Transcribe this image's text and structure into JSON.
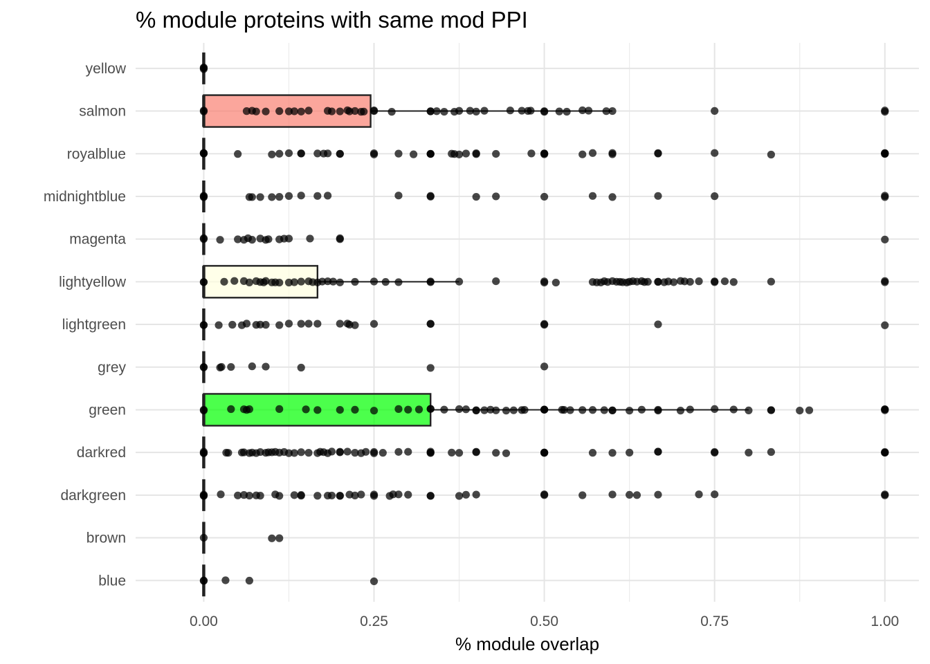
{
  "chart_data": {
    "type": "boxplot",
    "orientation": "horizontal",
    "title": "% module proteins with same mod PPI",
    "xlabel": "% module overlap",
    "ylabel": "",
    "xlim": [
      -0.1,
      1.05
    ],
    "xticks": [
      0,
      0.25,
      0.5,
      0.75,
      1.0
    ],
    "xtick_labels": [
      "0.00",
      "0.25",
      "0.50",
      "0.75",
      "1.00"
    ],
    "grid": true,
    "legend": "none",
    "point_color": "#000000",
    "categories": [
      "yellow",
      "salmon",
      "royalblue",
      "midnightblue",
      "magenta",
      "lightyellow",
      "lightgreen",
      "grey",
      "green",
      "darkred",
      "darkgreen",
      "brown",
      "blue"
    ],
    "boxes": [
      {
        "category": "yellow",
        "fill": "#FFFF00",
        "q1": 0,
        "median": 0,
        "q3": 0,
        "whisker_low": 0,
        "whisker_high": 0
      },
      {
        "category": "salmon",
        "fill": "#FA8072",
        "q1": 0,
        "median": 0,
        "q3": 0.245,
        "whisker_low": 0,
        "whisker_high": 0.6
      },
      {
        "category": "royalblue",
        "fill": "#4169E1",
        "q1": 0,
        "median": 0,
        "q3": 0,
        "whisker_low": 0,
        "whisker_high": 0
      },
      {
        "category": "midnightblue",
        "fill": "#191970",
        "q1": 0,
        "median": 0,
        "q3": 0,
        "whisker_low": 0,
        "whisker_high": 0
      },
      {
        "category": "magenta",
        "fill": "#FF00FF",
        "q1": 0,
        "median": 0,
        "q3": 0,
        "whisker_low": 0,
        "whisker_high": 0
      },
      {
        "category": "lightyellow",
        "fill": "#FFFFE0",
        "q1": 0,
        "median": 0,
        "q3": 0.167,
        "whisker_low": 0,
        "whisker_high": 0.375
      },
      {
        "category": "lightgreen",
        "fill": "#90EE90",
        "q1": 0,
        "median": 0,
        "q3": 0,
        "whisker_low": 0,
        "whisker_high": 0
      },
      {
        "category": "grey",
        "fill": "#BEBEBE",
        "q1": 0,
        "median": 0,
        "q3": 0,
        "whisker_low": 0,
        "whisker_high": 0
      },
      {
        "category": "green",
        "fill": "#00FF00",
        "q1": 0,
        "median": 0,
        "q3": 0.333,
        "whisker_low": 0,
        "whisker_high": 0.8
      },
      {
        "category": "darkred",
        "fill": "#8B0000",
        "q1": 0,
        "median": 0,
        "q3": 0,
        "whisker_low": 0,
        "whisker_high": 0
      },
      {
        "category": "darkgreen",
        "fill": "#006400",
        "q1": 0,
        "median": 0,
        "q3": 0,
        "whisker_low": 0,
        "whisker_high": 0
      },
      {
        "category": "brown",
        "fill": "#A52A2A",
        "q1": 0,
        "median": 0,
        "q3": 0,
        "whisker_low": 0,
        "whisker_high": 0
      },
      {
        "category": "blue",
        "fill": "#0000FF",
        "q1": 0,
        "median": 0,
        "q3": 0,
        "whisker_low": 0,
        "whisker_high": 0
      }
    ],
    "points": {
      "yellow": [
        0,
        0,
        0
      ],
      "salmon": [
        0,
        0,
        0.063,
        0.071,
        0.077,
        0.091,
        0.111,
        0.125,
        0.133,
        0.143,
        0.154,
        0.182,
        0.188,
        0.2,
        0.211,
        0.214,
        0.222,
        0.231,
        0.235,
        0.25,
        0.25,
        0.276,
        0.333,
        0.333,
        0.342,
        0.353,
        0.368,
        0.375,
        0.391,
        0.4,
        0.412,
        0.45,
        0.467,
        0.476,
        0.48,
        0.5,
        0.5,
        0.522,
        0.533,
        0.556,
        0.565,
        0.591,
        0.6,
        0.75,
        1,
        1
      ],
      "royalblue": [
        0,
        0,
        0,
        0.05,
        0.1,
        0.111,
        0.125,
        0.143,
        0.143,
        0.167,
        0.176,
        0.182,
        0.2,
        0.2,
        0.25,
        0.25,
        0.286,
        0.308,
        0.333,
        0.333,
        0.333,
        0.364,
        0.368,
        0.375,
        0.385,
        0.4,
        0.4,
        0.429,
        0.481,
        0.5,
        0.5,
        0.5,
        0.556,
        0.571,
        0.6,
        0.6,
        0.667,
        0.667,
        0.75,
        0.833,
        1,
        1,
        1,
        1
      ],
      "midnightblue": [
        0,
        0,
        0,
        0.067,
        0.071,
        0.083,
        0.1,
        0.111,
        0.125,
        0.143,
        0.167,
        0.182,
        0.286,
        0.333,
        0.333,
        0.4,
        0.429,
        0.5,
        0.571,
        0.6,
        0.667,
        0.75,
        1,
        1
      ],
      "magenta": [
        0,
        0,
        0.024,
        0.05,
        0.059,
        0.065,
        0.071,
        0.083,
        0.091,
        0.095,
        0.111,
        0.118,
        0.125,
        0.156,
        0.2,
        0.2,
        1
      ],
      "lightyellow": [
        0,
        0,
        0.03,
        0.045,
        0.059,
        0.067,
        0.077,
        0.083,
        0.088,
        0.091,
        0.1,
        0.105,
        0.111,
        0.125,
        0.133,
        0.143,
        0.154,
        0.16,
        0.167,
        0.174,
        0.182,
        0.19,
        0.2,
        0.222,
        0.25,
        0.267,
        0.286,
        0.333,
        0.333,
        0.375,
        0.429,
        0.5,
        0.5,
        0.517,
        0.571,
        0.577,
        0.583,
        0.588,
        0.593,
        0.6,
        0.606,
        0.611,
        0.615,
        0.621,
        0.625,
        0.63,
        0.636,
        0.643,
        0.647,
        0.652,
        0.667,
        0.667,
        0.676,
        0.682,
        0.69,
        0.7,
        0.706,
        0.714,
        0.727,
        0.75,
        0.75,
        0.765,
        0.778,
        0.833,
        1,
        1
      ],
      "lightgreen": [
        0,
        0,
        0.022,
        0.042,
        0.056,
        0.063,
        0.077,
        0.083,
        0.091,
        0.111,
        0.125,
        0.143,
        0.154,
        0.167,
        0.2,
        0.211,
        0.214,
        0.222,
        0.25,
        0.333,
        0.333,
        0.5,
        0.5,
        0.667,
        1
      ],
      "grey": [
        0,
        0,
        0.024,
        0.026,
        0.04,
        0.071,
        0.091,
        0.143,
        0.333,
        0.5
      ],
      "green": [
        0,
        0,
        0.04,
        0.059,
        0.063,
        0.067,
        0.111,
        0.15,
        0.167,
        0.2,
        0.222,
        0.25,
        0.286,
        0.3,
        0.316,
        0.333,
        0.333,
        0.353,
        0.375,
        0.385,
        0.4,
        0.4,
        0.412,
        0.421,
        0.429,
        0.444,
        0.455,
        0.467,
        0.471,
        0.5,
        0.5,
        0.5,
        0.526,
        0.529,
        0.538,
        0.556,
        0.571,
        0.588,
        0.6,
        0.6,
        0.625,
        0.643,
        0.667,
        0.667,
        0.7,
        0.714,
        0.75,
        0.778,
        0.8,
        0.833,
        0.833,
        0.875,
        0.889,
        1,
        1,
        1
      ],
      "darkred": [
        0,
        0,
        0,
        0.033,
        0.036,
        0.056,
        0.059,
        0.067,
        0.071,
        0.077,
        0.083,
        0.091,
        0.095,
        0.1,
        0.105,
        0.111,
        0.118,
        0.125,
        0.133,
        0.143,
        0.154,
        0.167,
        0.171,
        0.176,
        0.182,
        0.188,
        0.2,
        0.2,
        0.211,
        0.222,
        0.231,
        0.238,
        0.25,
        0.25,
        0.263,
        0.286,
        0.3,
        0.333,
        0.333,
        0.333,
        0.364,
        0.375,
        0.4,
        0.4,
        0.429,
        0.444,
        0.5,
        0.5,
        0.5,
        0.571,
        0.6,
        0.625,
        0.667,
        0.667,
        0.75,
        0.75,
        0.8,
        0.833,
        1,
        1,
        1
      ],
      "darkgreen": [
        0,
        0,
        0,
        0.025,
        0.05,
        0.059,
        0.067,
        0.077,
        0.083,
        0.105,
        0.111,
        0.133,
        0.143,
        0.143,
        0.167,
        0.182,
        0.188,
        0.2,
        0.2,
        0.214,
        0.222,
        0.231,
        0.25,
        0.25,
        0.273,
        0.278,
        0.286,
        0.3,
        0.333,
        0.333,
        0.375,
        0.385,
        0.4,
        0.5,
        0.5,
        0.556,
        0.6,
        0.625,
        0.636,
        0.667,
        0.727,
        0.75,
        1,
        1
      ],
      "brown": [
        0,
        0.1,
        0.111
      ],
      "blue": [
        0,
        0,
        0.032,
        0.067,
        0.25
      ]
    }
  }
}
